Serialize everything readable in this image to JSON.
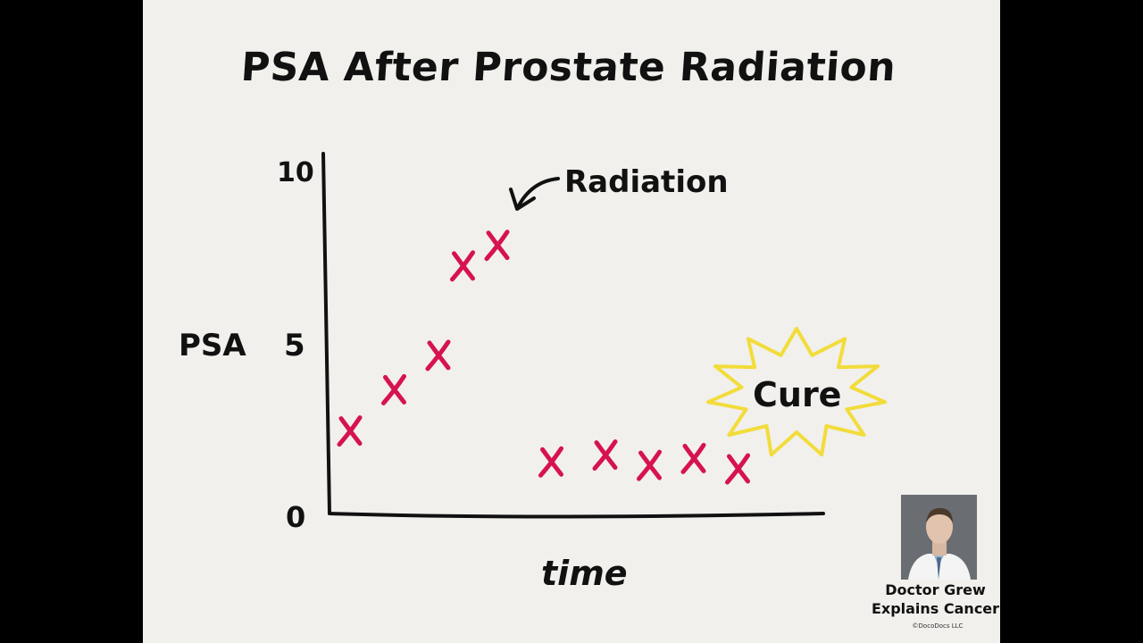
{
  "title": "PSA After Prostate Radiation",
  "chart_data": {
    "type": "scatter",
    "title": "PSA After Prostate Radiation",
    "ylabel": "PSA",
    "xlabel": "time",
    "yticks": [
      "0",
      "5",
      "10"
    ],
    "ylim": [
      0,
      10
    ],
    "xlim": [
      0,
      10
    ],
    "grid": false,
    "marker": "x",
    "series": [
      {
        "color": "#d6134f",
        "points": [
          {
            "x": 0.4,
            "y": 2.4
          },
          {
            "x": 1.3,
            "y": 3.6
          },
          {
            "x": 2.2,
            "y": 4.6
          },
          {
            "x": 2.7,
            "y": 7.2
          },
          {
            "x": 3.4,
            "y": 7.8
          },
          {
            "x": 4.5,
            "y": 1.5
          },
          {
            "x": 5.6,
            "y": 1.7
          },
          {
            "x": 6.5,
            "y": 1.4
          },
          {
            "x": 7.4,
            "y": 1.6
          },
          {
            "x": 8.3,
            "y": 1.3
          }
        ]
      }
    ],
    "annotations": [
      {
        "text": "Radiation",
        "arrow_to": {
          "x": 3.7,
          "y": 8.6
        }
      },
      {
        "text": "Cure",
        "style": "yellow-starburst",
        "color": "#f2dc3a"
      }
    ]
  },
  "branding": {
    "line1": "Doctor Grew",
    "line2": "Explains Cancer",
    "copyright": "©DocoDocs LLC"
  }
}
